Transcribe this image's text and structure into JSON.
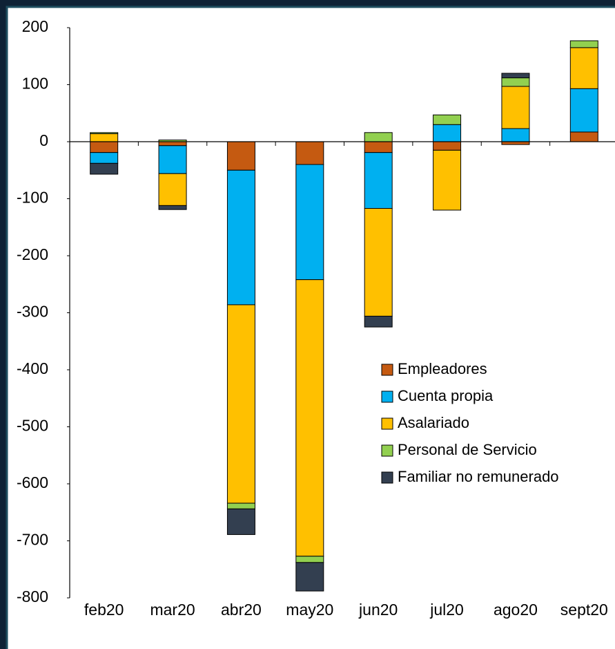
{
  "chart_data": {
    "type": "stacked-bar",
    "categories": [
      "feb20",
      "mar20",
      "abr20",
      "may20",
      "jun20",
      "jul20",
      "ago20",
      "sept20"
    ],
    "series": [
      {
        "name": "Empleadores",
        "color": "#c55a11",
        "values": [
          -19,
          -7,
          -50,
          -40,
          -19,
          -15,
          -5,
          17
        ]
      },
      {
        "name": "Cuenta propia",
        "color": "#00b0f0",
        "values": [
          -19,
          -49,
          -236,
          -202,
          -98,
          30,
          23,
          76
        ]
      },
      {
        "name": "Asalariado",
        "color": "#ffc000",
        "values": [
          14,
          -56,
          -348,
          -485,
          -189,
          -105,
          74,
          72
        ]
      },
      {
        "name": "Personal de Servicio",
        "color": "#92d050",
        "values": [
          2,
          3,
          -10,
          -11,
          16,
          17,
          15,
          12
        ]
      },
      {
        "name": "Familiar no remunerado",
        "color": "#333f50",
        "values": [
          -19,
          -7,
          -45,
          -50,
          -19,
          0,
          8,
          0
        ]
      }
    ],
    "ylim": [
      -800,
      200
    ],
    "yticks": [
      -800,
      -700,
      -600,
      -500,
      -400,
      -300,
      -200,
      -100,
      0,
      100,
      200
    ],
    "legend": "center-right"
  }
}
